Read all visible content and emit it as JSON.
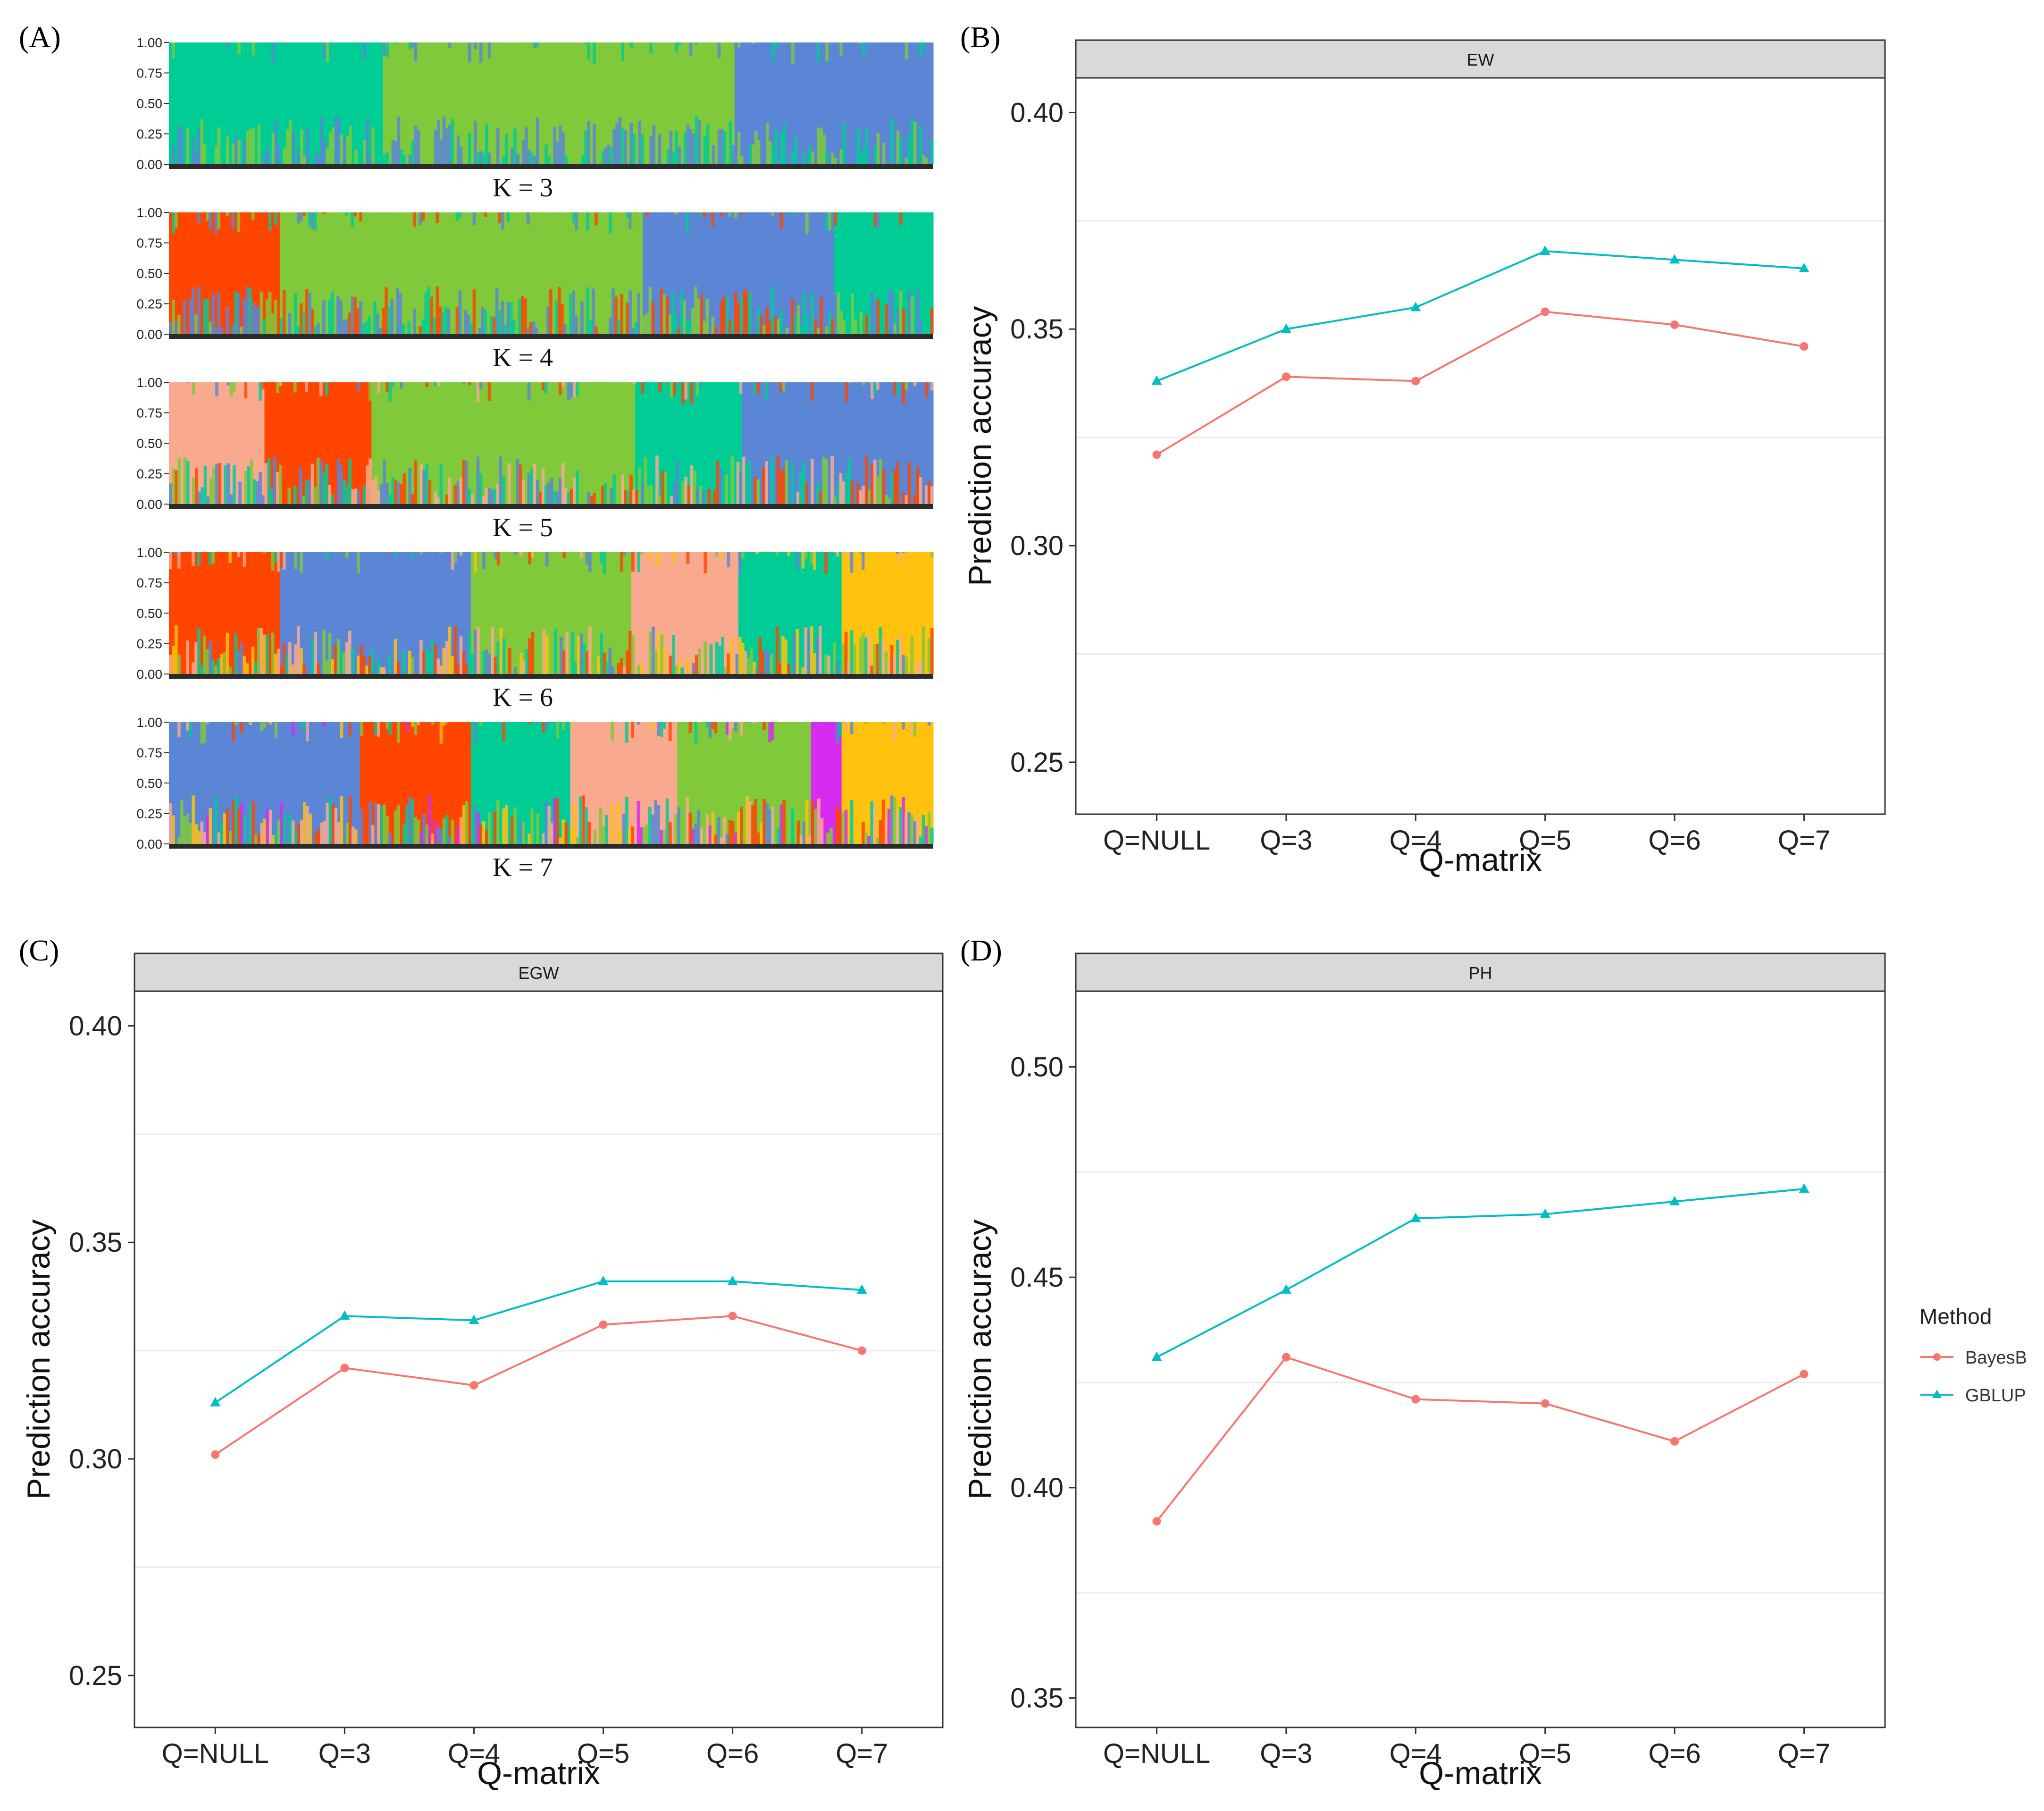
{
  "figure": {
    "panel_labels": [
      "(A)",
      "(B)",
      "(C)",
      "(D)"
    ]
  },
  "colors": {
    "bayesb": "#F8766D",
    "gblup": "#00BFC4",
    "strip_fill": "#D9D9D9",
    "grid": "#EBEBEB",
    "structure_palette": [
      "#00CC96",
      "#7FC93A",
      "#5B86D6",
      "#FF4500",
      "#F9AA8E",
      "#FFC20E",
      "#D62BF0"
    ]
  },
  "chart_data": [
    {
      "type": "structure_barplot",
      "panel": "(A)",
      "y_ticks": [
        "0.00",
        "0.25",
        "0.50",
        "0.75",
        "1.00"
      ],
      "rows": [
        {
          "label": "K = 3",
          "clusters": [
            {
              "color": "#00CC96",
              "share": 0.28
            },
            {
              "color": "#7FC93A",
              "share": 0.46
            },
            {
              "color": "#5B86D6",
              "share": 0.26
            }
          ]
        },
        {
          "label": "K = 4",
          "clusters": [
            {
              "color": "#FF4500",
              "share": 0.145
            },
            {
              "color": "#7FC93A",
              "share": 0.475
            },
            {
              "color": "#5B86D6",
              "share": 0.25
            },
            {
              "color": "#00CC96",
              "share": 0.13
            }
          ]
        },
        {
          "label": "K = 5",
          "clusters": [
            {
              "color": "#F9AA8E",
              "share": 0.125
            },
            {
              "color": "#FF4500",
              "share": 0.14
            },
            {
              "color": "#7FC93A",
              "share": 0.345
            },
            {
              "color": "#00CC96",
              "share": 0.14
            },
            {
              "color": "#5B86D6",
              "share": 0.25
            }
          ]
        },
        {
          "label": "K = 6",
          "clusters": [
            {
              "color": "#FF4500",
              "share": 0.145
            },
            {
              "color": "#5B86D6",
              "share": 0.25
            },
            {
              "color": "#7FC93A",
              "share": 0.21
            },
            {
              "color": "#F9AA8E",
              "share": 0.14
            },
            {
              "color": "#00CC96",
              "share": 0.135
            },
            {
              "color": "#FFC20E",
              "share": 0.12
            }
          ]
        },
        {
          "label": "K = 7",
          "clusters": [
            {
              "color": "#5B86D6",
              "share": 0.25
            },
            {
              "color": "#FF4500",
              "share": 0.145
            },
            {
              "color": "#00CC96",
              "share": 0.13
            },
            {
              "color": "#F9AA8E",
              "share": 0.14
            },
            {
              "color": "#7FC93A",
              "share": 0.175
            },
            {
              "color": "#D62BF0",
              "share": 0.04
            },
            {
              "color": "#FFC20E",
              "share": 0.12
            }
          ]
        }
      ]
    },
    {
      "type": "line",
      "panel": "(B)",
      "title": "EW",
      "xlabel": "Q-matrix",
      "ylabel": "Prediction accuracy",
      "categories": [
        "Q=NULL",
        "Q=3",
        "Q=4",
        "Q=5",
        "Q=6",
        "Q=7"
      ],
      "ylim": [
        0.238,
        0.408
      ],
      "yticks": [
        0.25,
        0.3,
        0.35,
        0.4
      ],
      "ytick_labels": [
        "0.25",
        "0.30",
        "0.35",
        "0.40"
      ],
      "series": [
        {
          "name": "BayesB",
          "values": [
            0.321,
            0.339,
            0.338,
            0.354,
            0.351,
            0.346
          ]
        },
        {
          "name": "GBLUP",
          "values": [
            0.338,
            0.35,
            0.355,
            0.368,
            0.366,
            0.364
          ]
        }
      ]
    },
    {
      "type": "line",
      "panel": "(C)",
      "title": "EGW",
      "xlabel": "Q-matrix",
      "ylabel": "Prediction accuracy",
      "categories": [
        "Q=NULL",
        "Q=3",
        "Q=4",
        "Q=5",
        "Q=6",
        "Q=7"
      ],
      "ylim": [
        0.238,
        0.408
      ],
      "yticks": [
        0.25,
        0.3,
        0.35,
        0.4
      ],
      "ytick_labels": [
        "0.25",
        "0.30",
        "0.35",
        "0.40"
      ],
      "series": [
        {
          "name": "BayesB",
          "values": [
            0.301,
            0.321,
            0.317,
            0.331,
            0.333,
            0.325
          ]
        },
        {
          "name": "GBLUP",
          "values": [
            0.313,
            0.333,
            0.332,
            0.341,
            0.341,
            0.339
          ]
        }
      ]
    },
    {
      "type": "line",
      "panel": "(D)",
      "title": "PH",
      "xlabel": "Q-matrix",
      "ylabel": "Prediction accuracy",
      "categories": [
        "Q=NULL",
        "Q=3",
        "Q=4",
        "Q=5",
        "Q=6",
        "Q=7"
      ],
      "ylim": [
        0.343,
        0.518
      ],
      "yticks": [
        0.35,
        0.4,
        0.45,
        0.5
      ],
      "ytick_labels": [
        "0.35",
        "0.40",
        "0.45",
        "0.50"
      ],
      "series": [
        {
          "name": "BayesB",
          "values": [
            0.392,
            0.431,
            0.421,
            0.42,
            0.411,
            0.427
          ]
        },
        {
          "name": "GBLUP",
          "values": [
            0.431,
            0.447,
            0.464,
            0.465,
            0.468,
            0.471
          ]
        }
      ]
    }
  ],
  "legend": {
    "title": "Method",
    "position": "right",
    "items": [
      {
        "name": "BayesB",
        "color": "#F8766D",
        "shape": "circle"
      },
      {
        "name": "GBLUP",
        "color": "#00BFC4",
        "shape": "triangle"
      }
    ]
  }
}
